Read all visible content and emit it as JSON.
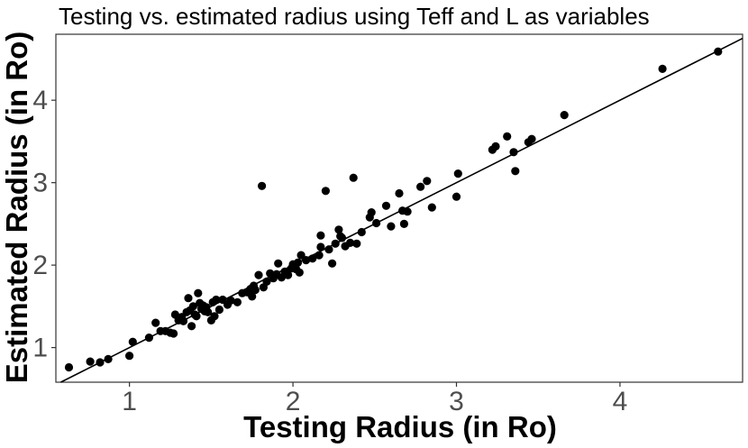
{
  "chart_data": {
    "type": "scatter",
    "title": "Testing vs. estimated radius using Teff and L as variables",
    "xlabel": "Testing Radius (in Ro)",
    "ylabel": "Estimated Radius (in Ro)",
    "xlim": [
      0.55,
      4.75
    ],
    "ylim": [
      0.58,
      4.8
    ],
    "xticks": [
      1,
      2,
      3,
      4
    ],
    "yticks": [
      1,
      2,
      3,
      4
    ],
    "xtick_labels": [
      "1",
      "2",
      "3",
      "4"
    ],
    "ytick_labels": [
      "1",
      "2",
      "3",
      "4"
    ],
    "grid": false,
    "reference_line": {
      "type": "y=x"
    },
    "points": [
      [
        0.63,
        0.76
      ],
      [
        0.76,
        0.83
      ],
      [
        0.82,
        0.82
      ],
      [
        0.87,
        0.86
      ],
      [
        1.0,
        0.9
      ],
      [
        1.02,
        1.07
      ],
      [
        1.12,
        1.12
      ],
      [
        1.16,
        1.3
      ],
      [
        1.19,
        1.2
      ],
      [
        1.22,
        1.2
      ],
      [
        1.25,
        1.18
      ],
      [
        1.27,
        1.17
      ],
      [
        1.28,
        1.4
      ],
      [
        1.3,
        1.33
      ],
      [
        1.32,
        1.37
      ],
      [
        1.33,
        1.32
      ],
      [
        1.35,
        1.43
      ],
      [
        1.36,
        1.6
      ],
      [
        1.37,
        1.45
      ],
      [
        1.38,
        1.26
      ],
      [
        1.39,
        1.5
      ],
      [
        1.4,
        1.4
      ],
      [
        1.41,
        1.38
      ],
      [
        1.42,
        1.66
      ],
      [
        1.43,
        1.54
      ],
      [
        1.44,
        1.47
      ],
      [
        1.45,
        1.51
      ],
      [
        1.46,
        1.44
      ],
      [
        1.47,
        1.49
      ],
      [
        1.48,
        1.43
      ],
      [
        1.5,
        1.33
      ],
      [
        1.51,
        1.55
      ],
      [
        1.52,
        1.38
      ],
      [
        1.53,
        1.58
      ],
      [
        1.55,
        1.46
      ],
      [
        1.57,
        1.58
      ],
      [
        1.6,
        1.52
      ],
      [
        1.62,
        1.57
      ],
      [
        1.66,
        1.55
      ],
      [
        1.69,
        1.66
      ],
      [
        1.72,
        1.67
      ],
      [
        1.74,
        1.71
      ],
      [
        1.75,
        1.62
      ],
      [
        1.76,
        1.75
      ],
      [
        1.77,
        1.7
      ],
      [
        1.79,
        1.88
      ],
      [
        1.81,
        2.96
      ],
      [
        1.82,
        1.73
      ],
      [
        1.84,
        1.8
      ],
      [
        1.86,
        1.9
      ],
      [
        1.88,
        1.84
      ],
      [
        1.9,
        1.89
      ],
      [
        1.91,
        2.02
      ],
      [
        1.93,
        1.85
      ],
      [
        1.95,
        1.92
      ],
      [
        1.97,
        1.88
      ],
      [
        1.99,
        1.96
      ],
      [
        2.0,
        2.01
      ],
      [
        2.02,
        1.95
      ],
      [
        2.03,
        2.03
      ],
      [
        2.04,
        1.91
      ],
      [
        2.05,
        2.12
      ],
      [
        2.08,
        2.06
      ],
      [
        2.12,
        2.08
      ],
      [
        2.16,
        2.12
      ],
      [
        2.17,
        2.22
      ],
      [
        2.17,
        2.36
      ],
      [
        2.2,
        2.9
      ],
      [
        2.22,
        2.19
      ],
      [
        2.24,
        2.02
      ],
      [
        2.26,
        2.26
      ],
      [
        2.28,
        2.43
      ],
      [
        2.29,
        2.35
      ],
      [
        2.3,
        2.33
      ],
      [
        2.32,
        2.23
      ],
      [
        2.35,
        2.27
      ],
      [
        2.37,
        3.06
      ],
      [
        2.39,
        2.26
      ],
      [
        2.42,
        2.4
      ],
      [
        2.47,
        2.58
      ],
      [
        2.48,
        2.64
      ],
      [
        2.51,
        2.51
      ],
      [
        2.57,
        2.72
      ],
      [
        2.6,
        2.47
      ],
      [
        2.65,
        2.87
      ],
      [
        2.67,
        2.66
      ],
      [
        2.68,
        2.5
      ],
      [
        2.7,
        2.65
      ],
      [
        2.78,
        2.95
      ],
      [
        2.82,
        3.02
      ],
      [
        2.85,
        2.7
      ],
      [
        3.0,
        2.83
      ],
      [
        3.01,
        3.11
      ],
      [
        3.22,
        3.4
      ],
      [
        3.24,
        3.44
      ],
      [
        3.31,
        3.56
      ],
      [
        3.35,
        3.37
      ],
      [
        3.36,
        3.14
      ],
      [
        3.44,
        3.49
      ],
      [
        3.46,
        3.53
      ],
      [
        3.66,
        3.82
      ],
      [
        4.26,
        4.38
      ],
      [
        4.6,
        4.59
      ]
    ]
  }
}
